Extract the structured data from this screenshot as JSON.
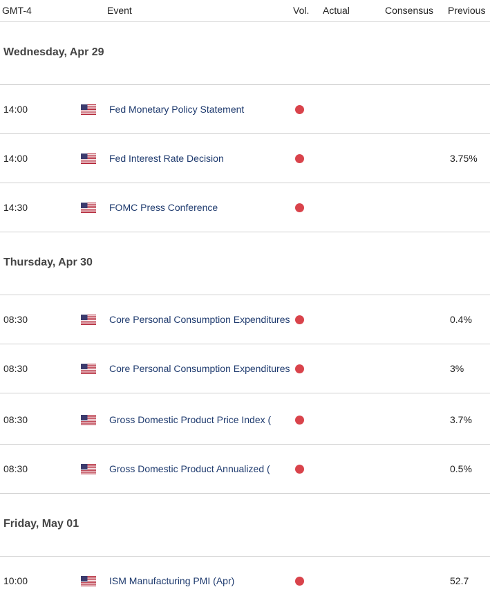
{
  "header": {
    "timezone": "GMT-4",
    "event": "Event",
    "vol": "Vol.",
    "actual": "Actual",
    "consensus": "Consensus",
    "previous": "Previous"
  },
  "colors": {
    "importance_high": "#d9434b",
    "event_link": "#1e3a6e"
  },
  "days": [
    {
      "label": "Wednesday, Apr 29",
      "events": [
        {
          "time": "14:00",
          "country_flag": "us-flag-icon",
          "name": "Fed Monetary Policy Statement",
          "actual": "",
          "consensus": "",
          "previous": ""
        },
        {
          "time": "14:00",
          "country_flag": "us-flag-icon",
          "name": "Fed Interest Rate Decision",
          "actual": "",
          "consensus": "",
          "previous": "3.75%"
        },
        {
          "time": "14:30",
          "country_flag": "us-flag-icon",
          "name": "FOMC Press Conference",
          "actual": "",
          "consensus": "",
          "previous": ""
        }
      ]
    },
    {
      "label": "Thursday, Apr 30",
      "events": [
        {
          "time": "08:30",
          "country_flag": "us-flag-icon",
          "name": "Core Personal Consumption Expenditures",
          "actual": "",
          "consensus": "",
          "previous": "0.4%"
        },
        {
          "time": "08:30",
          "country_flag": "us-flag-icon",
          "name": "Core Personal Consumption Expenditures",
          "actual": "",
          "consensus": "",
          "previous": "3%"
        },
        {
          "time": "08:30",
          "country_flag": "us-flag-icon",
          "name": "Gross Domestic Product Price Index (",
          "actual": "",
          "consensus": "",
          "previous": "3.7%"
        },
        {
          "time": "08:30",
          "country_flag": "us-flag-icon",
          "name": "Gross Domestic Product Annualized (",
          "actual": "",
          "consensus": "",
          "previous": "0.5%"
        }
      ]
    },
    {
      "label": "Friday, May 01",
      "events": [
        {
          "time": "10:00",
          "country_flag": "us-flag-icon",
          "name": "ISM Manufacturing PMI (Apr)",
          "actual": "",
          "consensus": "",
          "previous": "52.7"
        }
      ]
    }
  ]
}
